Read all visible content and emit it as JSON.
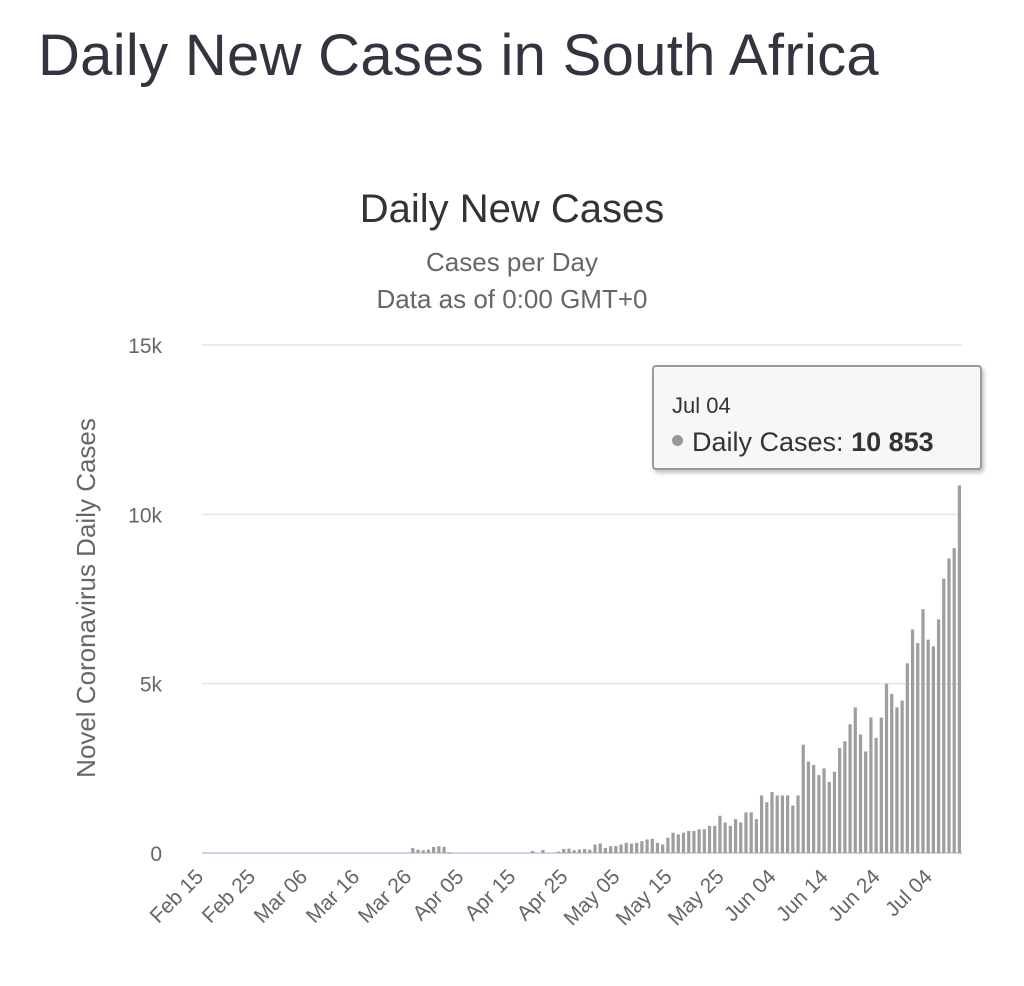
{
  "page": {
    "title": "Daily New Cases in South Africa"
  },
  "tooltip": {
    "date": "Jul 04",
    "series_label": "Daily Cases:",
    "value": "10 853"
  },
  "colors": {
    "bar": "#9e9e9e",
    "grid": "#e6e6e6",
    "title": "#333333",
    "axis_text": "#666666"
  },
  "chart_data": {
    "type": "bar",
    "title": "Daily New Cases",
    "subtitle": "Cases per Day",
    "subtitle2": "Data as of 0:00 GMT+0",
    "ylabel": "Novel Coronavirus Daily Cases",
    "xlabel": "",
    "ylim": [
      0,
      15000
    ],
    "yticks": [
      0,
      5000,
      10000,
      15000
    ],
    "ytick_labels": [
      "0",
      "5k",
      "10k",
      "15k"
    ],
    "grid": true,
    "legend": "none",
    "start_date": "Feb 15",
    "xtick_labels": [
      "Feb 15",
      "Feb 25",
      "Mar 06",
      "Mar 16",
      "Mar 26",
      "Apr 05",
      "Apr 15",
      "Apr 25",
      "May 05",
      "May 15",
      "May 25",
      "Jun 04",
      "Jun 14",
      "Jun 24",
      "Jul 04"
    ],
    "series": [
      {
        "name": "Daily Cases",
        "values": [
          0,
          0,
          0,
          0,
          0,
          0,
          0,
          0,
          0,
          0,
          0,
          0,
          0,
          0,
          0,
          0,
          0,
          0,
          0,
          0,
          0,
          0,
          0,
          0,
          0,
          0,
          0,
          0,
          0,
          0,
          0,
          0,
          0,
          0,
          0,
          0,
          0,
          0,
          0,
          0,
          150,
          100,
          80,
          100,
          180,
          200,
          180,
          10,
          0,
          0,
          0,
          0,
          0,
          0,
          0,
          0,
          0,
          0,
          0,
          0,
          0,
          0,
          0,
          60,
          0,
          90,
          0,
          0,
          40,
          120,
          130,
          80,
          100,
          120,
          100,
          250,
          280,
          150,
          200,
          210,
          250,
          300,
          280,
          300,
          350,
          400,
          420,
          300,
          250,
          450,
          600,
          550,
          600,
          650,
          650,
          700,
          700,
          800,
          800,
          1100,
          900,
          800,
          1000,
          900,
          1200,
          1200,
          1000,
          1700,
          1500,
          1800,
          1700,
          1700,
          1700,
          1400,
          1700,
          3200,
          2700,
          2600,
          2300,
          2500,
          2100,
          2400,
          3100,
          3300,
          3800,
          4300,
          3500,
          3000,
          4000,
          3400,
          4000,
          5000,
          4700,
          4300,
          4500,
          5600,
          6600,
          6200,
          7200,
          6300,
          6100,
          6900,
          8100,
          8700,
          9000,
          10853
        ]
      }
    ]
  }
}
